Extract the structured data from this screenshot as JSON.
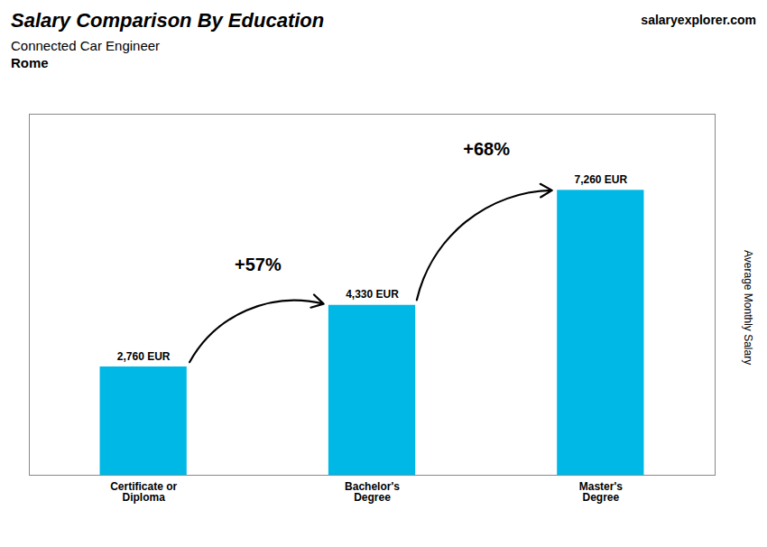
{
  "chart_data": {
    "type": "bar",
    "title": "Salary Comparison By Education",
    "subtitle": "Connected Car Engineer",
    "annotations": [
      {
        "text": "Rome"
      },
      {
        "text": "salaryexplorer.com"
      },
      {
        "text": "+57%",
        "from": "Certificate or\nDiploma",
        "to": "Bachelor's\nDegree"
      },
      {
        "text": "+68%",
        "from": "Bachelor's\nDegree",
        "to": "Master's\nDegree"
      }
    ],
    "ylabel": "Average Monthly Salary",
    "categories": [
      "Certificate or\nDiploma",
      "Bachelor's\nDegree",
      "Master's\nDegree"
    ],
    "values": [
      2760,
      4330,
      7260
    ],
    "value_labels": [
      "2,760 EUR",
      "4,330 EUR",
      "7,260 EUR"
    ],
    "color": "#00b8e6",
    "ylim": [
      0,
      9200
    ],
    "yticks": [],
    "grid": false,
    "data_labels": true,
    "tick_labels": "x"
  }
}
